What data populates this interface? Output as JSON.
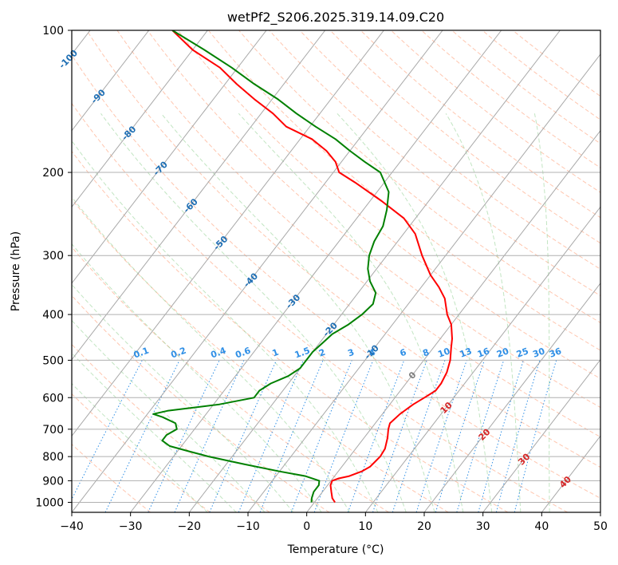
{
  "chart_data": {
    "type": "skew-t",
    "title": "wetPf2_S206.2025.319.14.09.C20",
    "xlabel": "Temperature (°C)",
    "ylabel": "Pressure (hPa)",
    "xlim": [
      -40,
      50
    ],
    "ylim": [
      1050,
      100
    ],
    "x_ticks": [
      -40,
      -30,
      -20,
      -10,
      0,
      10,
      20,
      30,
      40,
      50
    ],
    "y_ticks": [
      100,
      200,
      300,
      400,
      500,
      600,
      700,
      800,
      900,
      1000
    ],
    "grid": true,
    "isotherm_labels": [
      {
        "text": "-100",
        "t": -100,
        "p": 115
      },
      {
        "text": "-90",
        "t": -90,
        "p": 138
      },
      {
        "text": "-80",
        "t": -80,
        "p": 165
      },
      {
        "text": "-70",
        "t": -70,
        "p": 196
      },
      {
        "text": "-60",
        "t": -60,
        "p": 235
      },
      {
        "text": "-50",
        "t": -50,
        "p": 282
      },
      {
        "text": "-40",
        "t": -40,
        "p": 338
      },
      {
        "text": "-30",
        "t": -30,
        "p": 375
      },
      {
        "text": "-20",
        "t": -20,
        "p": 430
      },
      {
        "text": "-10",
        "t": -10,
        "p": 480
      },
      {
        "text": "0",
        "t": 0,
        "p": 538
      },
      {
        "text": "10",
        "t": 10,
        "p": 630
      },
      {
        "text": "20",
        "t": 20,
        "p": 718
      },
      {
        "text": "30",
        "t": 30,
        "p": 810
      },
      {
        "text": "40",
        "t": 40,
        "p": 905
      }
    ],
    "mixing_ratio_labels": [
      "0.1",
      "0.2",
      "0.4",
      "0.6",
      "1",
      "1.5",
      "2",
      "3",
      "4",
      "6",
      "8",
      "10",
      "13",
      "16",
      "20",
      "25",
      "30",
      "36"
    ],
    "series": [
      {
        "name": "Temperature",
        "color": "#ff0000",
        "points": [
          [
            1000,
            3.5
          ],
          [
            980,
            2.5
          ],
          [
            950,
            1.5
          ],
          [
            920,
            0.5
          ],
          [
            900,
            0.2
          ],
          [
            890,
            1.0
          ],
          [
            880,
            2.5
          ],
          [
            860,
            4.0
          ],
          [
            840,
            4.8
          ],
          [
            820,
            5.0
          ],
          [
            800,
            5.2
          ],
          [
            770,
            5.0
          ],
          [
            730,
            4.0
          ],
          [
            700,
            3.0
          ],
          [
            680,
            2.5
          ],
          [
            650,
            3.0
          ],
          [
            620,
            4.0
          ],
          [
            600,
            5.0
          ],
          [
            580,
            6.0
          ],
          [
            560,
            6.0
          ],
          [
            530,
            5.5
          ],
          [
            500,
            4.5
          ],
          [
            470,
            3.0
          ],
          [
            450,
            2.0
          ],
          [
            420,
            0.0
          ],
          [
            400,
            -2.0
          ],
          [
            370,
            -4.5
          ],
          [
            350,
            -7.0
          ],
          [
            330,
            -10.0
          ],
          [
            300,
            -14.0
          ],
          [
            270,
            -18.0
          ],
          [
            250,
            -22.0
          ],
          [
            230,
            -28.0
          ],
          [
            210,
            -35.0
          ],
          [
            200,
            -39.0
          ],
          [
            190,
            -41.0
          ],
          [
            180,
            -44.0
          ],
          [
            170,
            -48.0
          ],
          [
            160,
            -54.0
          ],
          [
            150,
            -58.0
          ],
          [
            140,
            -63.0
          ],
          [
            130,
            -68.0
          ],
          [
            120,
            -73.0
          ],
          [
            110,
            -80.0
          ],
          [
            100,
            -86.0
          ]
        ]
      },
      {
        "name": "Dewpoint",
        "color": "#008000",
        "points": [
          [
            1000,
            -0.5
          ],
          [
            980,
            -1.0
          ],
          [
            950,
            -1.5
          ],
          [
            920,
            -1.5
          ],
          [
            900,
            -2.0
          ],
          [
            880,
            -5.0
          ],
          [
            860,
            -10.0
          ],
          [
            830,
            -17.0
          ],
          [
            800,
            -24.0
          ],
          [
            780,
            -28.0
          ],
          [
            760,
            -32.0
          ],
          [
            740,
            -34.0
          ],
          [
            720,
            -34.0
          ],
          [
            700,
            -33.0
          ],
          [
            680,
            -34.0
          ],
          [
            660,
            -37.0
          ],
          [
            650,
            -39.0
          ],
          [
            640,
            -37.0
          ],
          [
            620,
            -29.0
          ],
          [
            600,
            -24.0
          ],
          [
            580,
            -24.0
          ],
          [
            560,
            -23.0
          ],
          [
            540,
            -21.0
          ],
          [
            520,
            -20.0
          ],
          [
            500,
            -20.0
          ],
          [
            480,
            -20.0
          ],
          [
            460,
            -19.5
          ],
          [
            440,
            -19.0
          ],
          [
            420,
            -17.5
          ],
          [
            400,
            -16.5
          ],
          [
            380,
            -16.0
          ],
          [
            360,
            -17.0
          ],
          [
            340,
            -19.5
          ],
          [
            320,
            -21.5
          ],
          [
            300,
            -23.0
          ],
          [
            280,
            -24.0
          ],
          [
            260,
            -24.5
          ],
          [
            240,
            -26.0
          ],
          [
            220,
            -28.0
          ],
          [
            200,
            -32.0
          ],
          [
            190,
            -36.0
          ],
          [
            180,
            -40.0
          ],
          [
            170,
            -44.0
          ],
          [
            160,
            -49.0
          ],
          [
            150,
            -54.0
          ],
          [
            140,
            -59.0
          ],
          [
            130,
            -65.0
          ],
          [
            120,
            -71.0
          ],
          [
            110,
            -78.0
          ],
          [
            100,
            -86.0
          ]
        ]
      }
    ]
  }
}
